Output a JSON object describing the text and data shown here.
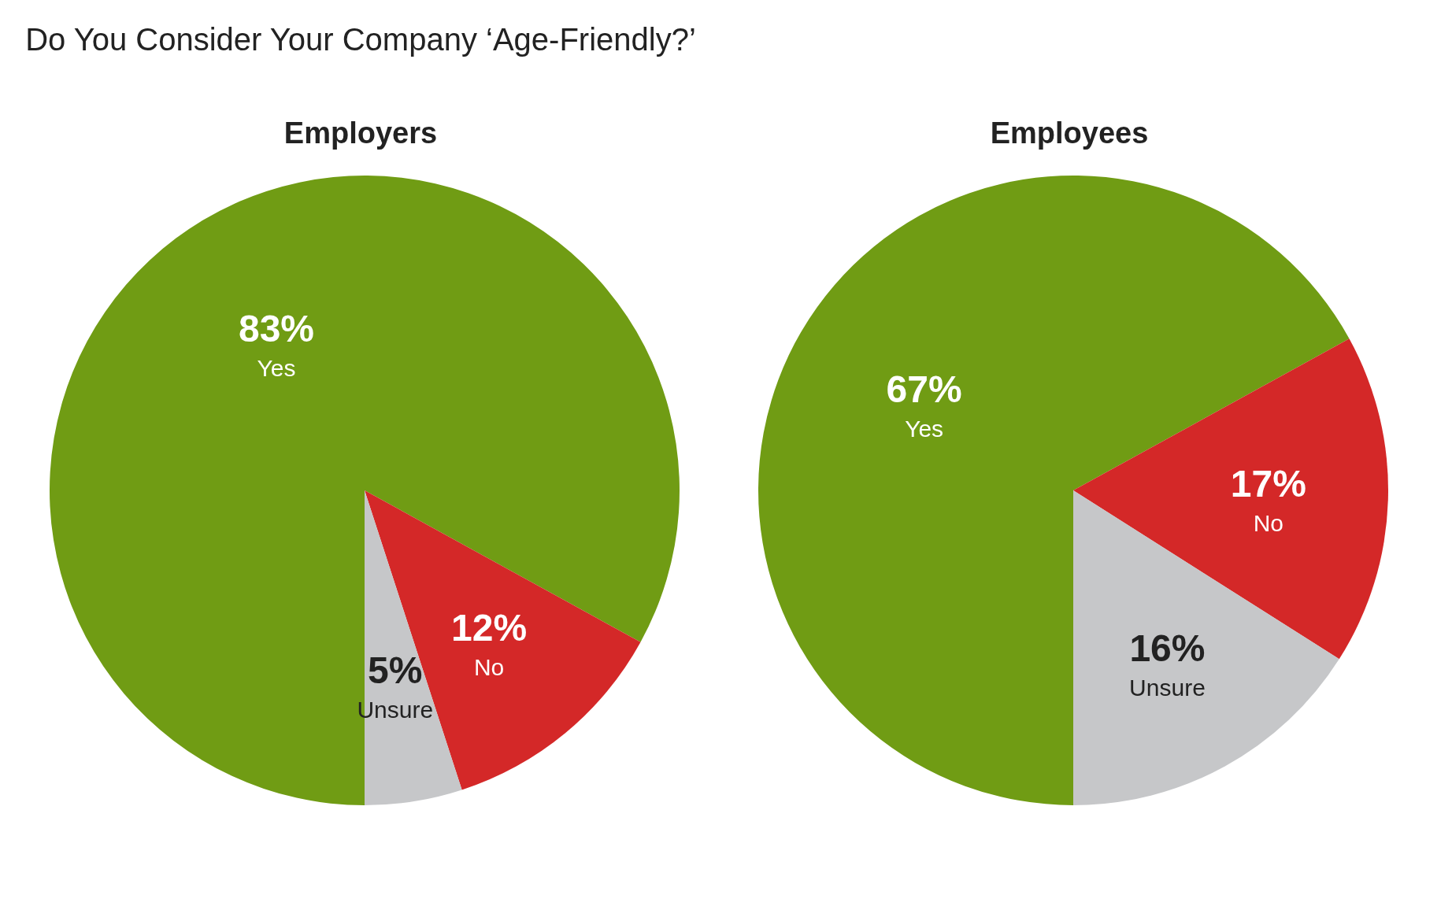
{
  "chart_data": [
    {
      "type": "pie",
      "title": "Do You Consider Your Company ‘Age-Friendly?’",
      "subtitle": "Employers",
      "categories": [
        "Yes",
        "No",
        "Unsure"
      ],
      "values": [
        83,
        12,
        5
      ],
      "value_labels": [
        "83%",
        "12%",
        "5%"
      ],
      "colors": [
        "#709c14",
        "#d42828",
        "#c6c7c9"
      ]
    },
    {
      "type": "pie",
      "subtitle": "Employees",
      "categories": [
        "Yes",
        "No",
        "Unsure"
      ],
      "values": [
        67,
        17,
        16
      ],
      "value_labels": [
        "67%",
        "17%",
        "16%"
      ],
      "colors": [
        "#709c14",
        "#d42828",
        "#c6c7c9"
      ]
    }
  ]
}
